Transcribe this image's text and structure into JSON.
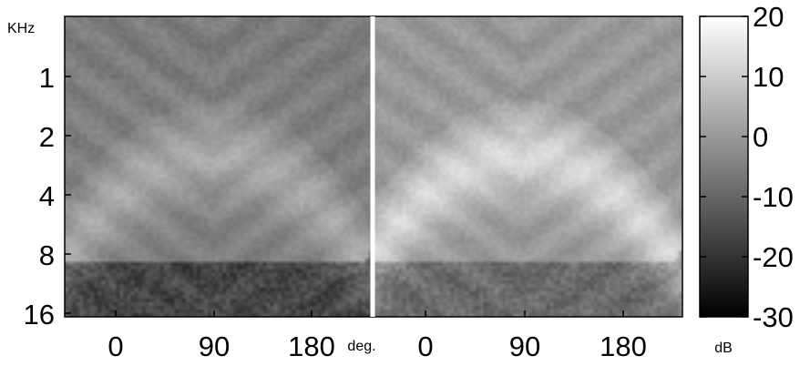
{
  "chart_data": [
    {
      "type": "heatmap",
      "panel": "left",
      "colormap": "gray",
      "y_axis_unit": "KHz",
      "y_ticks": [
        "1",
        "2",
        "4",
        "8",
        "16"
      ],
      "y_tick_values_khz": [
        1,
        2,
        4,
        8,
        16
      ],
      "y_scale": "log2",
      "y_range_khz": [
        0.5,
        16
      ],
      "x_ticks": [
        "0",
        "90",
        "180"
      ],
      "x_tick_values_deg": [
        0,
        90,
        180
      ],
      "x_range_deg": [
        -45,
        270
      ],
      "value_range_db": [
        -30,
        20
      ],
      "description_values": {
        "background_db": -5,
        "arc_center_deg": 110,
        "arc_peak_db": 3,
        "low_freq_band_db": -8,
        "high_freq_dark_db": -20
      }
    },
    {
      "type": "heatmap",
      "panel": "right",
      "colormap": "gray",
      "x_ticks": [
        "0",
        "90",
        "180"
      ],
      "x_tick_values_deg": [
        0,
        90,
        180
      ],
      "x_range_deg": [
        -45,
        270
      ],
      "x_axis_unit": "deg.",
      "value_range_db": [
        -30,
        20
      ],
      "description_values": {
        "background_db": 0,
        "arc_center_deg": 110,
        "arc_peak_db": 12,
        "high_freq_dark_db": -12
      }
    }
  ],
  "colorbar": {
    "unit": "dB",
    "ticks": [
      "20",
      "10",
      "0",
      "-10",
      "-20",
      "-30"
    ],
    "tick_values_db": [
      20,
      10,
      0,
      -10,
      -20,
      -30
    ],
    "range_db": [
      -30,
      20
    ]
  },
  "labels": {
    "y_unit": "KHz",
    "x_unit": "deg.",
    "colorbar_unit": "dB"
  }
}
